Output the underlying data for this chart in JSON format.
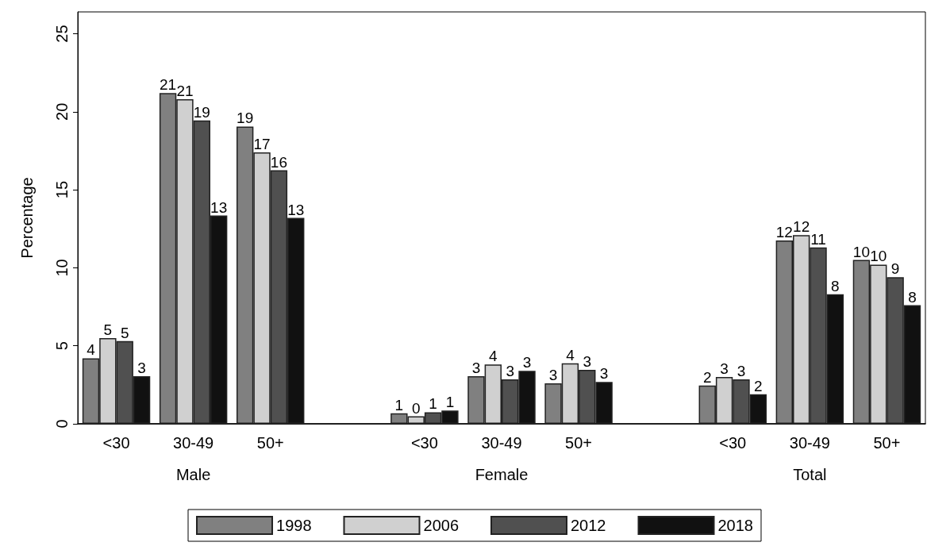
{
  "chart_data": {
    "type": "bar",
    "ylabel": "Percentage",
    "categories": [
      "<30",
      "30-49",
      "50+",
      null,
      "<30",
      "30-49",
      "50+",
      null,
      "<30",
      "30-49",
      "50+"
    ],
    "annotations": [
      "Male",
      "Female",
      "Total"
    ],
    "series": [
      {
        "name": "1998",
        "color": "#808080",
        "values": [
          4.2,
          21.2,
          19.05,
          null,
          0.67,
          3.05,
          2.6,
          null,
          2.45,
          11.75,
          10.5
        ],
        "value_labels": [
          "4",
          "21",
          "19",
          null,
          "1",
          "3",
          "3",
          null,
          "2",
          "12",
          "10"
        ]
      },
      {
        "name": "2006",
        "color": "#d0d0d0",
        "values": [
          5.5,
          20.8,
          17.4,
          null,
          0.48,
          3.8,
          3.88,
          null,
          3.0,
          12.1,
          10.2
        ],
        "value_labels": [
          "5",
          "21",
          "17",
          null,
          "0",
          "4",
          "4",
          null,
          "3",
          "12",
          "10"
        ]
      },
      {
        "name": "2012",
        "color": "#505050",
        "values": [
          5.3,
          19.45,
          16.25,
          null,
          0.74,
          2.85,
          3.46,
          null,
          2.85,
          11.3,
          9.4
        ],
        "value_labels": [
          "5",
          "19",
          "16",
          null,
          "1",
          "3",
          "3",
          null,
          "3",
          "11",
          "9"
        ]
      },
      {
        "name": "2018",
        "color": "#111111",
        "values": [
          3.05,
          13.35,
          13.2,
          null,
          0.85,
          3.4,
          2.68,
          null,
          1.9,
          8.3,
          7.6
        ],
        "value_labels": [
          "3",
          "13",
          "13",
          null,
          "1",
          "3",
          "3",
          null,
          "2",
          "8",
          "8"
        ]
      }
    ],
    "ylim": [
      0,
      26.4
    ],
    "yticks": [
      0,
      5,
      10,
      15,
      20,
      25
    ],
    "grid": false,
    "legend": "bottom"
  }
}
